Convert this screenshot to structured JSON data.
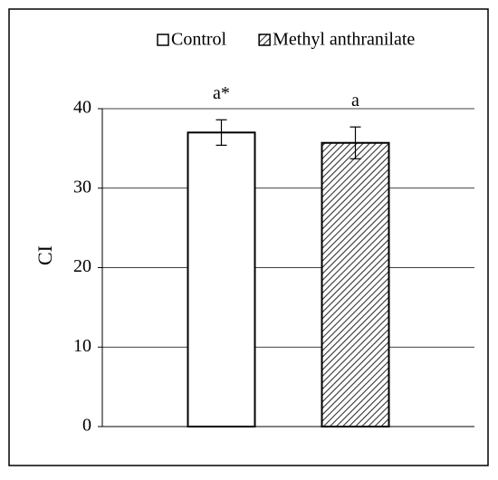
{
  "chart_data": {
    "type": "bar",
    "y_label": "CI",
    "categories": [
      null
    ],
    "series": [
      {
        "name": "Control",
        "color": "#ffffff",
        "hatch": false,
        "values": [
          37
        ],
        "errors": [
          1.6
        ],
        "annotations": [
          "a*"
        ]
      },
      {
        "name": "Methyl anthranilate",
        "color": "#ffffff",
        "hatch": true,
        "values": [
          35.7
        ],
        "errors": [
          2.0
        ],
        "annotations": [
          "a"
        ]
      }
    ],
    "ylim": [
      0,
      45
    ],
    "yticks": [
      0,
      10,
      20,
      30,
      40
    ],
    "grid": true,
    "legend": "top"
  }
}
